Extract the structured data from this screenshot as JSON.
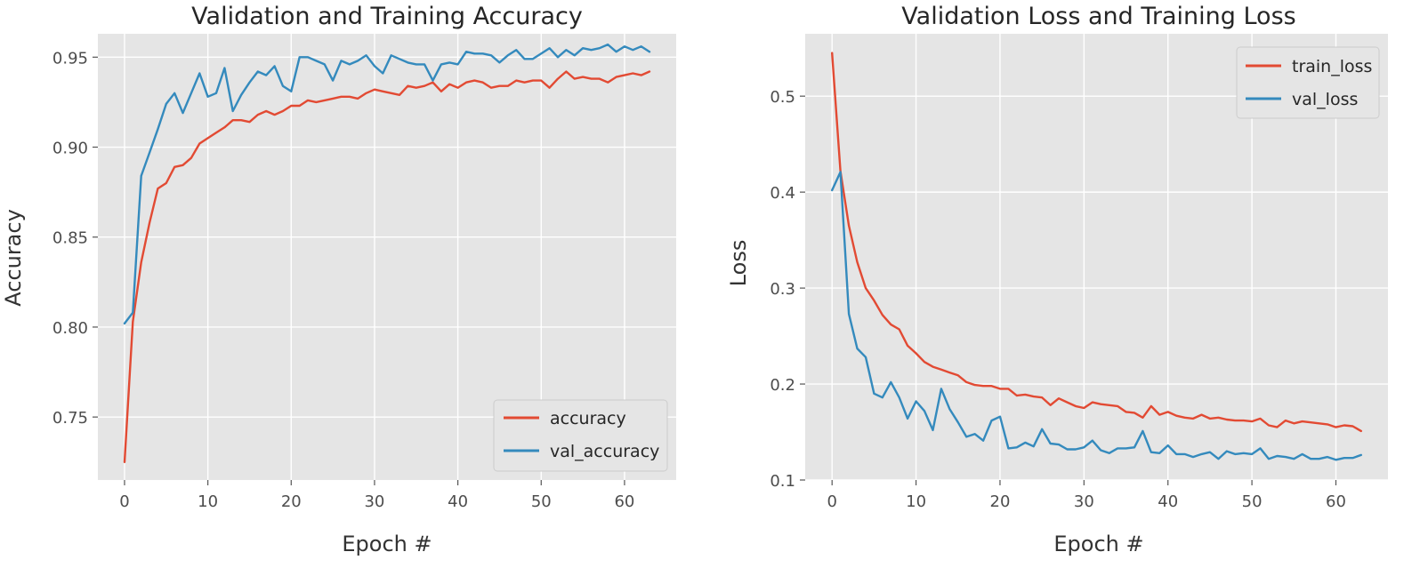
{
  "chart_data": [
    {
      "type": "line",
      "title": "Validation and Training Accuracy",
      "xlabel": "Epoch #",
      "ylabel": "Accuracy",
      "xlim": [
        -3.2,
        66.2
      ],
      "ylim": [
        0.715,
        0.963
      ],
      "xticks": [
        0,
        10,
        20,
        30,
        40,
        50,
        60
      ],
      "xtick_labels": [
        "0",
        "10",
        "20",
        "30",
        "40",
        "50",
        "60"
      ],
      "yticks": [
        0.75,
        0.8,
        0.85,
        0.9,
        0.95
      ],
      "ytick_labels": [
        "0.75",
        "0.80",
        "0.85",
        "0.90",
        "0.95"
      ],
      "grid": true,
      "legend_position": "lower-right",
      "series": [
        {
          "name": "accuracy",
          "color": "#e24a33",
          "values": [
            0.725,
            0.803,
            0.836,
            0.858,
            0.877,
            0.88,
            0.889,
            0.89,
            0.894,
            0.902,
            0.905,
            0.908,
            0.911,
            0.915,
            0.915,
            0.914,
            0.918,
            0.92,
            0.918,
            0.92,
            0.923,
            0.923,
            0.926,
            0.925,
            0.926,
            0.927,
            0.928,
            0.928,
            0.927,
            0.93,
            0.932,
            0.931,
            0.93,
            0.929,
            0.934,
            0.933,
            0.934,
            0.936,
            0.931,
            0.935,
            0.933,
            0.936,
            0.937,
            0.936,
            0.933,
            0.934,
            0.934,
            0.937,
            0.936,
            0.937,
            0.937,
            0.933,
            0.938,
            0.942,
            0.938,
            0.939,
            0.938,
            0.938,
            0.936,
            0.939,
            0.94,
            0.941,
            0.94,
            0.942
          ]
        },
        {
          "name": "val_accuracy",
          "color": "#348abd",
          "values": [
            0.802,
            0.808,
            0.884,
            0.897,
            0.91,
            0.924,
            0.93,
            0.919,
            0.93,
            0.941,
            0.928,
            0.93,
            0.944,
            0.92,
            0.929,
            0.936,
            0.942,
            0.94,
            0.945,
            0.934,
            0.931,
            0.95,
            0.95,
            0.948,
            0.946,
            0.937,
            0.948,
            0.946,
            0.948,
            0.951,
            0.945,
            0.941,
            0.951,
            0.949,
            0.947,
            0.946,
            0.946,
            0.937,
            0.946,
            0.947,
            0.946,
            0.953,
            0.952,
            0.952,
            0.951,
            0.947,
            0.951,
            0.954,
            0.949,
            0.949,
            0.952,
            0.955,
            0.95,
            0.954,
            0.951,
            0.955,
            0.954,
            0.955,
            0.957,
            0.953,
            0.956,
            0.954,
            0.956,
            0.953
          ]
        }
      ]
    },
    {
      "type": "line",
      "title": "Validation Loss and Training Loss",
      "xlabel": "Epoch #",
      "ylabel": "Loss",
      "xlim": [
        -3.2,
        66.2
      ],
      "ylim": [
        0.1,
        0.565
      ],
      "xticks": [
        0,
        10,
        20,
        30,
        40,
        50,
        60
      ],
      "xtick_labels": [
        "0",
        "10",
        "20",
        "30",
        "40",
        "50",
        "60"
      ],
      "yticks": [
        0.1,
        0.2,
        0.3,
        0.4,
        0.5
      ],
      "ytick_labels": [
        "0.1",
        "0.2",
        "0.3",
        "0.4",
        "0.5"
      ],
      "grid": true,
      "legend_position": "upper-right",
      "series": [
        {
          "name": "train_loss",
          "color": "#e24a33",
          "values": [
            0.545,
            0.422,
            0.365,
            0.327,
            0.3,
            0.287,
            0.272,
            0.262,
            0.257,
            0.24,
            0.232,
            0.223,
            0.218,
            0.215,
            0.212,
            0.209,
            0.202,
            0.199,
            0.198,
            0.198,
            0.195,
            0.195,
            0.188,
            0.189,
            0.187,
            0.186,
            0.178,
            0.185,
            0.181,
            0.177,
            0.175,
            0.181,
            0.179,
            0.178,
            0.177,
            0.171,
            0.17,
            0.165,
            0.177,
            0.168,
            0.171,
            0.167,
            0.165,
            0.164,
            0.168,
            0.164,
            0.165,
            0.163,
            0.162,
            0.162,
            0.161,
            0.164,
            0.157,
            0.155,
            0.162,
            0.159,
            0.161,
            0.16,
            0.159,
            0.158,
            0.155,
            0.157,
            0.156,
            0.151
          ]
        },
        {
          "name": "val_loss",
          "color": "#348abd",
          "values": [
            0.402,
            0.421,
            0.273,
            0.237,
            0.228,
            0.19,
            0.186,
            0.202,
            0.186,
            0.164,
            0.182,
            0.172,
            0.152,
            0.195,
            0.174,
            0.16,
            0.145,
            0.148,
            0.141,
            0.162,
            0.166,
            0.133,
            0.134,
            0.139,
            0.135,
            0.153,
            0.138,
            0.137,
            0.132,
            0.132,
            0.134,
            0.141,
            0.131,
            0.128,
            0.133,
            0.133,
            0.134,
            0.151,
            0.129,
            0.128,
            0.136,
            0.127,
            0.127,
            0.124,
            0.127,
            0.129,
            0.122,
            0.13,
            0.127,
            0.128,
            0.127,
            0.133,
            0.122,
            0.125,
            0.124,
            0.122,
            0.127,
            0.122,
            0.122,
            0.124,
            0.121,
            0.123,
            0.123,
            0.126
          ]
        }
      ]
    }
  ]
}
